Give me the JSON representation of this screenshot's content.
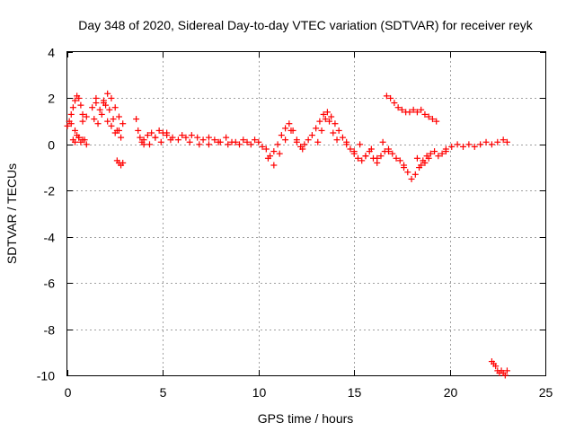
{
  "chart_data": {
    "type": "scatter",
    "title": "Day 348 of 2020, Sidereal Day-to-day VTEC variation (SDTVAR) for receiver reyk",
    "xlabel": "GPS time / hours",
    "ylabel": "SDTVAR / TECUs",
    "xlim": [
      0,
      25
    ],
    "ylim": [
      -10,
      4
    ],
    "xticks": [
      0,
      5,
      10,
      15,
      20,
      25
    ],
    "yticks": [
      4,
      2,
      0,
      -2,
      -4,
      -6,
      -8,
      -10
    ],
    "grid": true,
    "marker": "+",
    "color": "#ff0000",
    "series": [
      {
        "name": "SDTVAR",
        "x": [
          0.0,
          0.1,
          0.2,
          0.3,
          0.4,
          0.5,
          0.6,
          0.7,
          0.8,
          0.3,
          0.5,
          0.7,
          0.9,
          0.2,
          0.4,
          0.6,
          0.8,
          1.0,
          0.4,
          0.6,
          0.8,
          1.0,
          1.3,
          1.5,
          1.7,
          1.9,
          2.1,
          2.3,
          2.5,
          2.7,
          2.9,
          1.4,
          1.6,
          1.8,
          2.0,
          2.2,
          2.4,
          2.6,
          2.8,
          2.1,
          2.3,
          2.5,
          2.7,
          1.5,
          1.9,
          2.6,
          2.7,
          2.8,
          2.9,
          3.6,
          3.7,
          3.8,
          3.9,
          4.0,
          4.2,
          4.4,
          4.6,
          4.8,
          5.0,
          5.2,
          5.4,
          4.0,
          4.3,
          4.6,
          4.9,
          5.2,
          5.5,
          5.8,
          6.0,
          6.2,
          6.5,
          6.8,
          7.1,
          7.4,
          7.7,
          8.0,
          8.3,
          8.6,
          6.4,
          6.9,
          7.4,
          7.9,
          8.4,
          8.8,
          9.0,
          9.2,
          9.4,
          9.6,
          9.8,
          10.0,
          10.2,
          10.4,
          10.6,
          10.8,
          11.0,
          11.2,
          11.4,
          11.6,
          11.8,
          12.0,
          12.2,
          12.4,
          10.5,
          10.8,
          11.1,
          11.4,
          11.7,
          12.0,
          12.3,
          12.6,
          12.8,
          13.0,
          13.2,
          13.4,
          13.6,
          13.8,
          14.0,
          14.2,
          14.4,
          14.6,
          13.1,
          13.3,
          13.5,
          13.7,
          13.9,
          14.1,
          14.6,
          14.8,
          15.0,
          15.2,
          15.4,
          15.6,
          15.8,
          16.0,
          16.2,
          16.4,
          16.6,
          16.8,
          17.0,
          17.2,
          17.4,
          17.6,
          15.0,
          15.3,
          15.6,
          15.9,
          16.2,
          16.5,
          16.8,
          17.6,
          17.8,
          18.0,
          18.2,
          18.4,
          18.6,
          18.8,
          19.0,
          19.2,
          19.4,
          19.6,
          19.8,
          18.3,
          18.5,
          18.7,
          18.9,
          19.8,
          20.1,
          20.4,
          20.7,
          21.0,
          21.3,
          21.6,
          21.9,
          22.2,
          22.5,
          22.8,
          23.0,
          16.7,
          16.9,
          17.1,
          17.3,
          17.5,
          17.7,
          17.9,
          18.1,
          18.3,
          18.5,
          18.7,
          18.9,
          19.1,
          19.3,
          22.2,
          22.3,
          22.4,
          22.5,
          22.6,
          22.7,
          22.8,
          22.9,
          23.0
        ],
        "y": [
          0.8,
          1.0,
          1.3,
          1.6,
          1.9,
          2.1,
          2.0,
          1.7,
          1.3,
          0.2,
          0.4,
          0.1,
          0.2,
          0.9,
          0.6,
          0.3,
          1.0,
          1.2,
          0.1,
          0.3,
          0.2,
          0.0,
          1.6,
          1.8,
          1.5,
          1.9,
          2.2,
          2.0,
          1.6,
          1.2,
          0.9,
          1.1,
          0.9,
          1.3,
          1.7,
          1.5,
          1.1,
          0.6,
          0.3,
          1.0,
          0.8,
          0.5,
          0.6,
          2.0,
          1.8,
          -0.7,
          -0.8,
          -0.9,
          -0.8,
          1.1,
          0.6,
          0.3,
          0.1,
          0.0,
          0.4,
          0.5,
          0.3,
          0.6,
          0.5,
          0.4,
          0.2,
          0.2,
          0.0,
          0.3,
          0.1,
          0.5,
          0.3,
          0.2,
          0.4,
          0.3,
          0.4,
          0.3,
          0.2,
          0.3,
          0.2,
          0.1,
          0.3,
          0.1,
          0.1,
          0.0,
          0.0,
          0.1,
          0.0,
          0.1,
          0.0,
          0.2,
          0.1,
          0.0,
          0.2,
          0.1,
          -0.1,
          -0.2,
          -0.5,
          -0.3,
          0.0,
          0.4,
          0.7,
          0.9,
          0.6,
          0.2,
          -0.1,
          0.0,
          -0.6,
          -0.9,
          -0.4,
          0.2,
          0.6,
          0.1,
          -0.2,
          0.2,
          0.4,
          0.7,
          1.0,
          1.3,
          1.4,
          1.2,
          0.9,
          0.6,
          0.3,
          0.1,
          0.1,
          0.6,
          1.1,
          1.0,
          0.5,
          0.2,
          0.0,
          -0.2,
          -0.4,
          -0.6,
          -0.7,
          -0.5,
          -0.3,
          -0.6,
          -0.8,
          -0.5,
          -0.3,
          -0.2,
          -0.4,
          -0.6,
          -0.7,
          -0.9,
          -0.3,
          0.0,
          -0.5,
          -0.2,
          -0.6,
          0.1,
          -0.3,
          -1.0,
          -1.2,
          -1.5,
          -1.3,
          -1.0,
          -0.7,
          -0.5,
          -0.4,
          -0.3,
          -0.5,
          -0.4,
          -0.2,
          -0.6,
          -0.9,
          -0.8,
          -0.6,
          -0.3,
          -0.1,
          0.0,
          -0.1,
          0.0,
          -0.1,
          0.0,
          0.1,
          0.0,
          0.1,
          0.2,
          0.1,
          2.1,
          2.0,
          1.8,
          1.6,
          1.5,
          1.4,
          1.4,
          1.5,
          1.4,
          1.5,
          1.3,
          1.2,
          1.1,
          1.0,
          -9.4,
          -9.5,
          -9.6,
          -9.8,
          -9.9,
          -9.8,
          -9.9,
          -10.0,
          -9.8
        ]
      }
    ]
  }
}
